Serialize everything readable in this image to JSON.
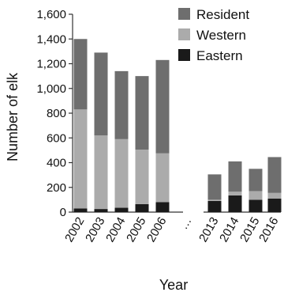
{
  "chart_data": {
    "type": "bar",
    "stacked": true,
    "xlabel": "Year",
    "ylabel": "Number of elk",
    "ylim": [
      0,
      1600
    ],
    "yticks": [
      0,
      200,
      400,
      600,
      800,
      1000,
      1200,
      1400,
      1600
    ],
    "ytick_labels": [
      "0",
      "200",
      "400",
      "600",
      "800",
      "1,000",
      "1,200",
      "1,400",
      "1,600"
    ],
    "grid": false,
    "legend_position": "top-right",
    "categories": [
      "2002",
      "2003",
      "2004",
      "2005",
      "2006",
      "…",
      "2013",
      "2014",
      "2015",
      "2016"
    ],
    "series": [
      {
        "name": "Eastern",
        "color": "#1a1a1a",
        "values": [
          30,
          25,
          35,
          65,
          80,
          null,
          90,
          135,
          100,
          110
        ]
      },
      {
        "name": "Western",
        "color": "#ababab",
        "values": [
          800,
          595,
          555,
          440,
          395,
          null,
          10,
          30,
          70,
          45
        ]
      },
      {
        "name": "Resident",
        "color": "#6e6e6e",
        "values": [
          570,
          670,
          550,
          595,
          755,
          null,
          205,
          245,
          180,
          290
        ]
      }
    ],
    "legend_order": [
      "Resident",
      "Western",
      "Eastern"
    ]
  }
}
